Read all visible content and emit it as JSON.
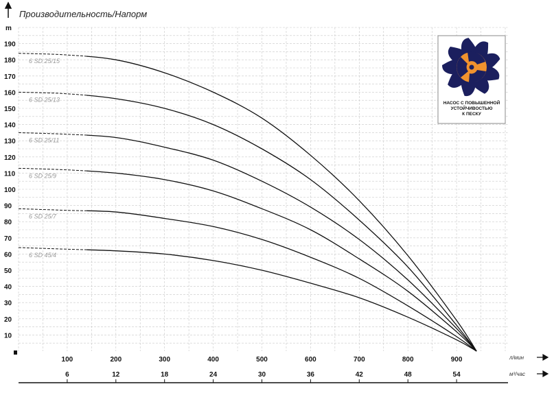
{
  "chart_data": {
    "type": "line",
    "title": "Производительность/Напорм",
    "ylabel": "m",
    "xlabel": "л/мин",
    "x2label": "м³/час",
    "ylim": [
      0,
      200
    ],
    "xlim": [
      0,
      1005
    ],
    "yticks": [
      10,
      20,
      30,
      40,
      50,
      60,
      70,
      80,
      90,
      100,
      110,
      120,
      130,
      140,
      150,
      160,
      170,
      180,
      190
    ],
    "xticks": [
      100,
      200,
      300,
      400,
      500,
      600,
      700,
      800,
      900
    ],
    "x2ticks": [
      6,
      12,
      18,
      24,
      30,
      36,
      42,
      48,
      54
    ],
    "grid": true,
    "x": [
      0,
      100,
      200,
      300,
      400,
      500,
      600,
      700,
      800,
      900,
      941
    ],
    "dashed_until_x": 140,
    "series": [
      {
        "name": "6 SD 25/15",
        "values": [
          184,
          183,
          180,
          172,
          160,
          144,
          121,
          93,
          59,
          19,
          0
        ]
      },
      {
        "name": "6 SD 25/13",
        "values": [
          160,
          159,
          156,
          150,
          140,
          125,
          106,
          81,
          52,
          16,
          0
        ]
      },
      {
        "name": "6 SD 25/11",
        "values": [
          135,
          134,
          132,
          126,
          118,
          105,
          89,
          69,
          44,
          14,
          0
        ]
      },
      {
        "name": "6 SD 25/9",
        "values": [
          113,
          112,
          110,
          106,
          99,
          88,
          75,
          57,
          37,
          12,
          0
        ]
      },
      {
        "name": "6 SD 25/7",
        "values": [
          88,
          87,
          86,
          82,
          77,
          69,
          58,
          45,
          28,
          9,
          0
        ]
      },
      {
        "name": "6 SD 45/4",
        "values": [
          64,
          63,
          62,
          60,
          56,
          50,
          42,
          33,
          21,
          7,
          0
        ]
      }
    ],
    "colors": {
      "line": "#111111",
      "grid": "#c8c8c8",
      "logo_dark": "#1b1f5e",
      "logo_orange": "#f0922e"
    }
  },
  "badge": {
    "lines": [
      "НАСОС С ПОВЫШЕННОЙ",
      "УСТОЙЧИВОСТЬЮ",
      "К ПЕСКУ"
    ]
  }
}
